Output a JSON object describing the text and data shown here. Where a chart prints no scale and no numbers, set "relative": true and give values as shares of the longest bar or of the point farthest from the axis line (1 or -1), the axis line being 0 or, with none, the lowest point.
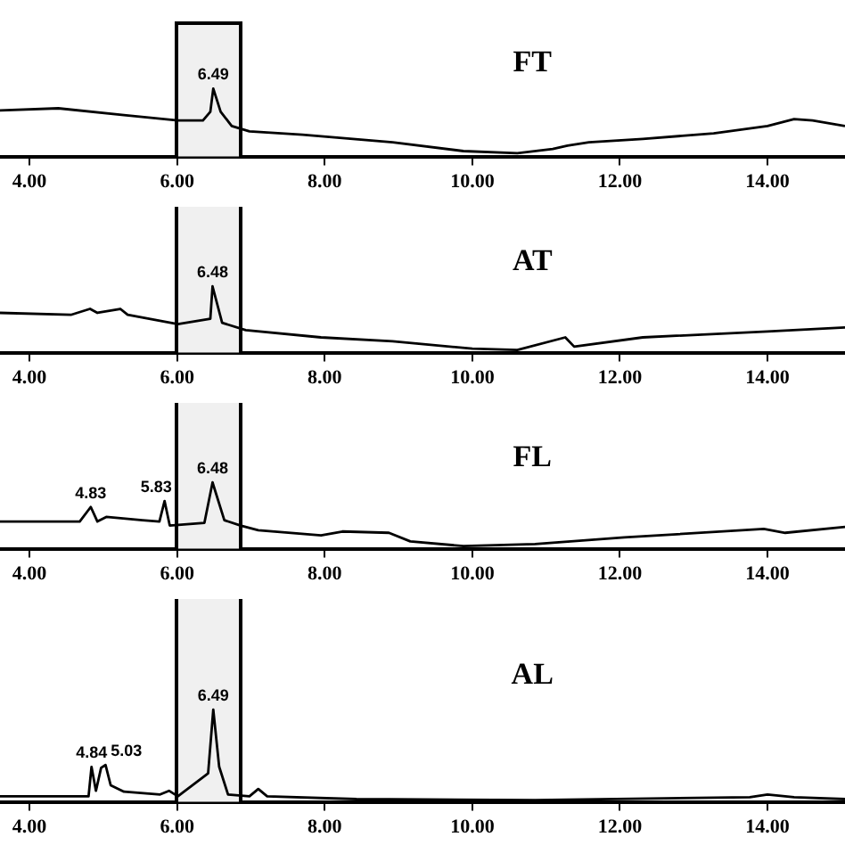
{
  "chart_data": [
    {
      "type": "line",
      "title": "FT",
      "relative": true,
      "xlim": [
        3.6,
        15.05
      ],
      "xticks": [
        {
          "value": 4,
          "label": "4.00"
        },
        {
          "value": 6,
          "label": "6.00"
        },
        {
          "value": 8,
          "label": "8.00"
        },
        {
          "value": 10,
          "label": "10.00"
        },
        {
          "value": 12,
          "label": "12.00"
        },
        {
          "value": 14,
          "label": "14.00"
        }
      ],
      "series": [
        {
          "color": "#000000",
          "x": [
            3.6,
            4.39,
            5.28,
            6.01,
            6.35,
            6.45,
            6.49,
            6.59,
            6.74,
            6.98,
            7.7,
            8.92,
            9.88,
            10.61,
            11.09,
            11.29,
            11.58,
            12.31,
            13.27,
            14.0,
            14.36,
            14.61,
            15.05
          ],
          "values": [
            0.68,
            0.71,
            0.61,
            0.53,
            0.53,
            0.66,
            1,
            0.66,
            0.45,
            0.37,
            0.32,
            0.21,
            0.08,
            0.05,
            0.11,
            0.16,
            0.21,
            0.26,
            0.34,
            0.45,
            0.55,
            0.53,
            0.45
          ]
        }
      ],
      "bands": [
        {
          "axis": "x",
          "from": 6.0,
          "to": 6.85,
          "color": "#f0f0f0"
        }
      ],
      "annotations": [
        {
          "text": "6.49",
          "x": 6.49,
          "y": 1
        }
      ]
    },
    {
      "type": "line",
      "title": "AT",
      "relative": true,
      "xlim": [
        3.6,
        15.05
      ],
      "xticks": [
        {
          "value": 4,
          "label": "4.00"
        },
        {
          "value": 6,
          "label": "6.00"
        },
        {
          "value": 8,
          "label": "8.00"
        },
        {
          "value": 10,
          "label": "10.00"
        },
        {
          "value": 12,
          "label": "12.00"
        },
        {
          "value": 14,
          "label": "14.00"
        }
      ],
      "series": [
        {
          "color": "#000000",
          "x": [
            3.6,
            4.56,
            4.82,
            4.92,
            5.23,
            5.33,
            6.01,
            6.45,
            6.48,
            6.61,
            6.93,
            7.95,
            8.92,
            10.0,
            10.61,
            11.26,
            11.38,
            12.31,
            14.0,
            15.05
          ],
          "values": [
            0.6,
            0.57,
            0.66,
            0.6,
            0.66,
            0.57,
            0.43,
            0.51,
            1,
            0.45,
            0.34,
            0.23,
            0.17,
            0.06,
            0.04,
            0.23,
            0.09,
            0.23,
            0.32,
            0.38
          ]
        }
      ],
      "bands": [
        {
          "axis": "x",
          "from": 6.0,
          "to": 6.85,
          "color": "#f0f0f0"
        }
      ],
      "annotations": [
        {
          "text": "6.48",
          "x": 6.48,
          "y": 1
        }
      ]
    },
    {
      "type": "line",
      "title": "FL",
      "relative": true,
      "xlim": [
        3.6,
        15.05
      ],
      "xticks": [
        {
          "value": 4,
          "label": "4.00"
        },
        {
          "value": 6,
          "label": "6.00"
        },
        {
          "value": 8,
          "label": "8.00"
        },
        {
          "value": 10,
          "label": "10.00"
        },
        {
          "value": 12,
          "label": "12.00"
        },
        {
          "value": 14,
          "label": "14.00"
        }
      ],
      "series": [
        {
          "color": "#000000",
          "x": [
            3.6,
            4.68,
            4.83,
            4.92,
            5.04,
            5.53,
            5.76,
            5.83,
            5.9,
            6.37,
            6.48,
            6.64,
            6.86,
            7.1,
            7.95,
            8.24,
            8.87,
            9.16,
            9.88,
            10.85,
            12.06,
            13.95,
            14.24,
            15.05
          ],
          "values": [
            0.41,
            0.41,
            0.63,
            0.41,
            0.48,
            0.43,
            0.41,
            0.72,
            0.35,
            0.39,
            1,
            0.43,
            0.35,
            0.28,
            0.2,
            0.26,
            0.24,
            0.11,
            0.04,
            0.07,
            0.17,
            0.3,
            0.24,
            0.33
          ]
        }
      ],
      "bands": [
        {
          "axis": "x",
          "from": 6.0,
          "to": 6.85,
          "color": "#f0f0f0"
        }
      ],
      "annotations": [
        {
          "text": "4.83",
          "x": 4.83,
          "y": 0.63
        },
        {
          "text": "5.83",
          "x": 5.83,
          "y": 0.72
        },
        {
          "text": "6.48",
          "x": 6.48,
          "y": 1
        }
      ]
    },
    {
      "type": "line",
      "title": "AL",
      "relative": true,
      "xlim": [
        3.6,
        15.05
      ],
      "xticks": [
        {
          "value": 4,
          "label": "4.00"
        },
        {
          "value": 6,
          "label": "6.00"
        },
        {
          "value": 8,
          "label": "8.00"
        },
        {
          "value": 10,
          "label": "10.00"
        },
        {
          "value": 12,
          "label": "12.00"
        },
        {
          "value": 14,
          "label": "14.00"
        }
      ],
      "series": [
        {
          "color": "#000000",
          "x": [
            3.6,
            4.8,
            4.84,
            4.9,
            4.97,
            5.03,
            5.1,
            5.28,
            5.77,
            5.89,
            6.01,
            6.42,
            6.49,
            6.57,
            6.69,
            6.98,
            7.1,
            7.22,
            8.43,
            10.85,
            13.76,
            14.0,
            14.36,
            15.05
          ],
          "values": [
            0.06,
            0.06,
            0.38,
            0.12,
            0.37,
            0.4,
            0.18,
            0.11,
            0.08,
            0.12,
            0.06,
            0.31,
            1,
            0.38,
            0.08,
            0.06,
            0.14,
            0.06,
            0.03,
            0.02,
            0.05,
            0.08,
            0.05,
            0.03
          ]
        }
      ],
      "bands": [
        {
          "axis": "x",
          "from": 6.0,
          "to": 6.85,
          "color": "#f0f0f0"
        }
      ],
      "annotations": [
        {
          "text": "4.84",
          "x": 4.84,
          "y": 0.38
        },
        {
          "text": "5.03",
          "x": 5.03,
          "y": 0.4
        },
        {
          "text": "6.49",
          "x": 6.49,
          "y": 1
        }
      ]
    }
  ]
}
